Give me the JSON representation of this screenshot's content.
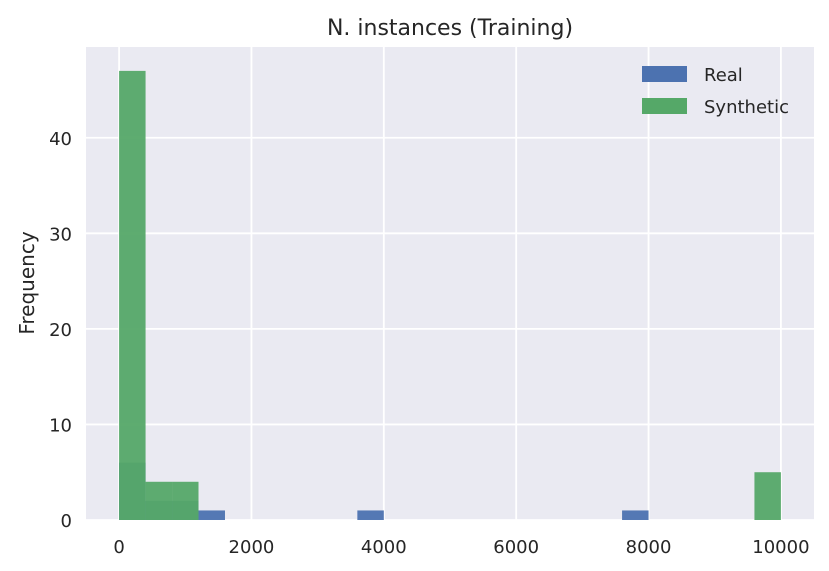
{
  "chart_data": {
    "type": "histogram",
    "title": "N. instances (Training)",
    "xlabel": "",
    "ylabel": "Frequency",
    "xlim": [
      -500,
      10500
    ],
    "ylim": [
      0,
      49.5
    ],
    "xticks": [
      0,
      2000,
      4000,
      6000,
      8000,
      10000
    ],
    "yticks": [
      0,
      10,
      20,
      30,
      40
    ],
    "grid": true,
    "legend_position": "top-right",
    "bin_width": 400,
    "series": [
      {
        "name": "Real",
        "color": "#4c72b0",
        "bins": [
          {
            "x0": 0,
            "x1": 400,
            "count": 6
          },
          {
            "x0": 400,
            "x1": 800,
            "count": 2
          },
          {
            "x0": 800,
            "x1": 1200,
            "count": 2
          },
          {
            "x0": 1200,
            "x1": 1600,
            "count": 1
          },
          {
            "x0": 3600,
            "x1": 4000,
            "count": 1
          },
          {
            "x0": 7600,
            "x1": 8000,
            "count": 1
          }
        ]
      },
      {
        "name": "Synthetic",
        "color": "#55a868",
        "bins": [
          {
            "x0": 0,
            "x1": 400,
            "count": 47
          },
          {
            "x0": 400,
            "x1": 800,
            "count": 4
          },
          {
            "x0": 800,
            "x1": 1200,
            "count": 4
          },
          {
            "x0": 9600,
            "x1": 10000,
            "count": 5
          }
        ]
      }
    ]
  }
}
